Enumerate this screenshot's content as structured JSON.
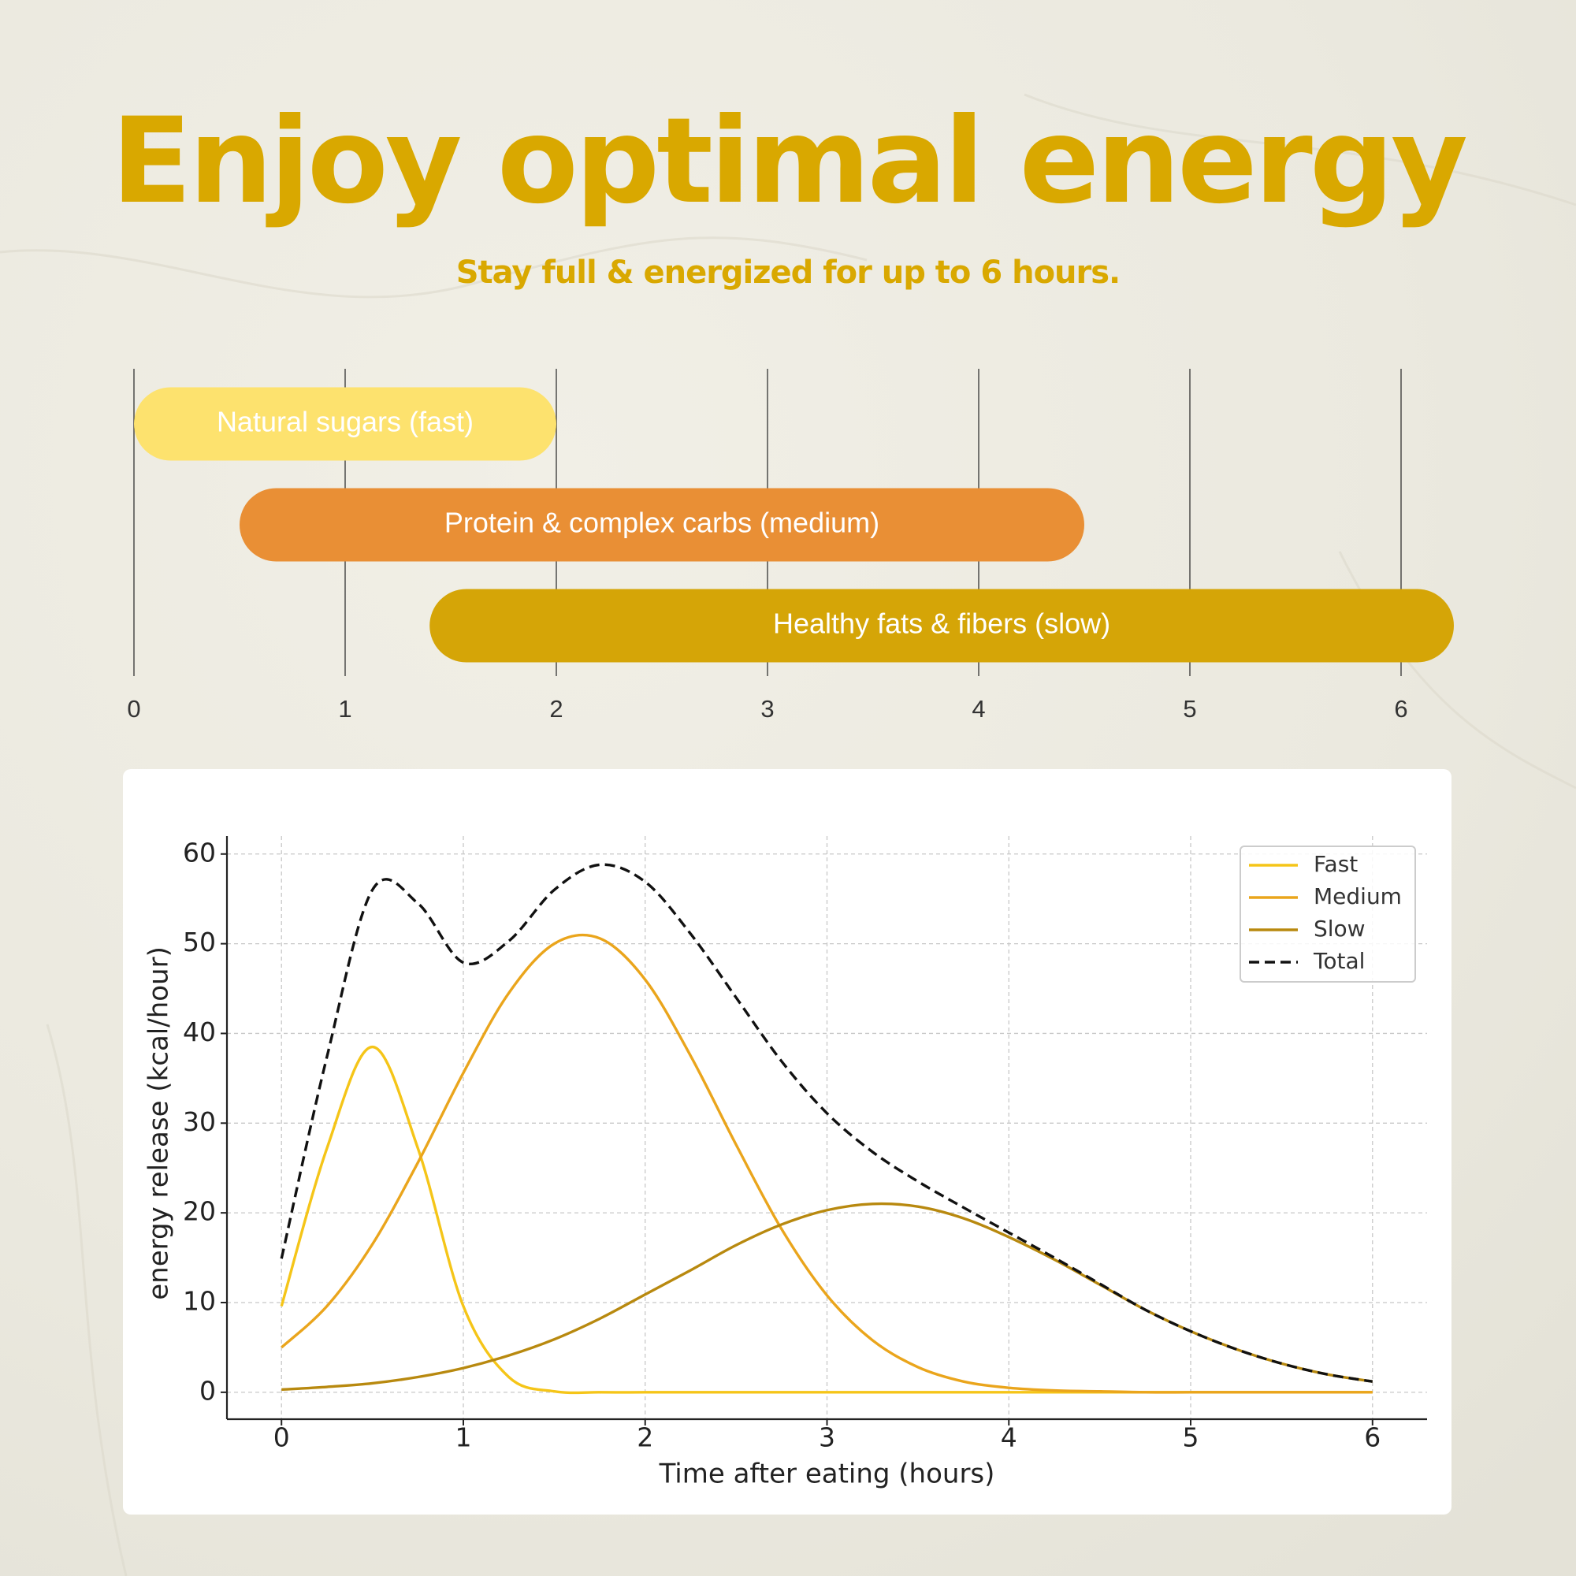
{
  "title": "Enjoy optimal energy",
  "subtitle": "Stay full & energized for up to 6 hours.",
  "chart_data": [
    {
      "type": "range",
      "categories": [
        "Natural sugars (fast)",
        "Protein & complex carbs (medium)",
        "Healthy fats & fibers (slow)"
      ],
      "start": [
        0,
        0.5,
        1.4
      ],
      "end": [
        2,
        4.5,
        6.25
      ],
      "colors": [
        "#fde26e",
        "#e98f35",
        "#d5a507"
      ],
      "xlim": [
        0,
        6
      ],
      "xticks": [
        0,
        1,
        2,
        3,
        4,
        5,
        6
      ],
      "grid": true
    },
    {
      "type": "line",
      "xlabel": "Time after eating (hours)",
      "ylabel": "energy release (kcal/hour)",
      "x": [
        0,
        0.25,
        0.5,
        0.75,
        1,
        1.25,
        1.5,
        1.75,
        2,
        2.25,
        2.5,
        2.75,
        3,
        3.25,
        3.5,
        3.75,
        4,
        4.25,
        4.5,
        4.75,
        5,
        5.25,
        5.5,
        5.75,
        6
      ],
      "series": [
        {
          "name": "Fast",
          "color": "#f5c518",
          "dash": false,
          "values": [
            9.6,
            27.2,
            38.5,
            27.2,
            9.6,
            1.7,
            0.1,
            0,
            0,
            0,
            0,
            0,
            0,
            0,
            0,
            0,
            0,
            0,
            0,
            0,
            0,
            0,
            0,
            0,
            0
          ]
        },
        {
          "name": "Medium",
          "color": "#eaa51c",
          "dash": false,
          "values": [
            5.0,
            9.6,
            16.5,
            25.6,
            35.6,
            44.5,
            50.0,
            50.6,
            46.0,
            37.5,
            27.6,
            18.2,
            10.8,
            5.8,
            2.8,
            1.2,
            0.5,
            0.2,
            0.1,
            0,
            0,
            0,
            0,
            0,
            0
          ]
        },
        {
          "name": "Slow",
          "color": "#b8890f",
          "dash": false,
          "values": [
            0.3,
            0.6,
            1.0,
            1.7,
            2.7,
            4.1,
            5.9,
            8.2,
            10.9,
            13.6,
            16.4,
            18.7,
            20.3,
            21.0,
            20.7,
            19.4,
            17.3,
            14.8,
            12.0,
            9.2,
            6.8,
            4.8,
            3.2,
            2.0,
            1.2
          ]
        },
        {
          "name": "Total",
          "color": "#111111",
          "dash": true,
          "values": [
            14.9,
            37.4,
            56.0,
            54.5,
            47.9,
            50.3,
            56.0,
            58.8,
            56.9,
            51.1,
            44.0,
            36.9,
            31.1,
            26.8,
            23.5,
            20.6,
            17.8,
            15.0,
            12.1,
            9.2,
            6.8,
            4.8,
            3.2,
            2.0,
            1.2
          ]
        }
      ],
      "xlim": [
        -0.3,
        6.3
      ],
      "ylim": [
        -3,
        62
      ],
      "xticks": [
        0,
        1,
        2,
        3,
        4,
        5,
        6
      ],
      "yticks": [
        0,
        10,
        20,
        30,
        40,
        50,
        60
      ],
      "grid": true,
      "legend": "upper right"
    }
  ]
}
